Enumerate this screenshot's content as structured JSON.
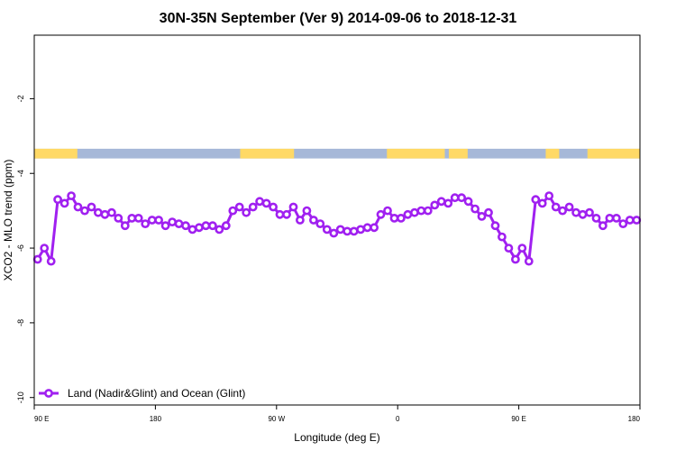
{
  "chart_data": {
    "type": "line",
    "title": "30N-35N September (Ver 9)   2014-09-06 to 2018-12-31",
    "xlabel": "Longitude (deg E)",
    "ylabel": "XCO2 - MLO trend (ppm)",
    "x_ticks": [
      {
        "value": 0,
        "label": "90 E"
      },
      {
        "value": 90,
        "label": "180"
      },
      {
        "value": 180,
        "label": "90 W"
      },
      {
        "value": 270,
        "label": "0"
      },
      {
        "value": 360,
        "label": "90 E"
      },
      {
        "value": 450,
        "label": "180"
      }
    ],
    "y_ticks": [
      {
        "value": -2,
        "label": "-2"
      },
      {
        "value": -4,
        "label": "-4"
      },
      {
        "value": -6,
        "label": "-6"
      },
      {
        "value": -8,
        "label": "-8"
      },
      {
        "value": -10,
        "label": "-10"
      }
    ],
    "xlim": [
      0,
      450
    ],
    "ylim": [
      -10.2,
      -0.3
    ],
    "grid": false,
    "legend_position": "bottom-left",
    "colors": {
      "series": "#a020f0",
      "land": "#ffd966",
      "ocean": "#a6b8d8"
    },
    "land_ocean_band": {
      "y_range": [
        -3.34,
        -3.6
      ],
      "land_segments": [
        [
          0,
          32
        ],
        [
          153,
          193
        ],
        [
          262,
          305
        ],
        [
          308,
          322
        ],
        [
          380,
          390
        ],
        [
          411,
          450
        ]
      ]
    },
    "series": [
      {
        "name": "Land (Nadir&Glint) and Ocean (Glint)",
        "x": [
          2.5,
          7.5,
          12.5,
          17.5,
          22.5,
          27.5,
          32.5,
          37.5,
          42.5,
          47.5,
          52.5,
          57.5,
          62.5,
          67.5,
          72.5,
          77.5,
          82.5,
          87.5,
          92.5,
          97.5,
          102.5,
          107.5,
          112.5,
          117.5,
          122.5,
          127.5,
          132.5,
          137.5,
          142.5,
          147.5,
          152.5,
          157.5,
          162.5,
          167.5,
          172.5,
          177.5,
          182.5,
          187.5,
          192.5,
          197.5,
          202.5,
          207.5,
          212.5,
          217.5,
          222.5,
          227.5,
          232.5,
          237.5,
          242.5,
          247.5,
          252.5,
          257.5,
          262.5,
          267.5,
          272.5,
          277.5,
          282.5,
          287.5,
          292.5,
          297.5,
          302.5,
          307.5,
          312.5,
          317.5,
          322.5,
          327.5,
          332.5,
          337.5,
          342.5,
          347.5,
          352.5,
          357.5,
          362.5,
          367.5,
          372.5,
          377.5,
          382.5,
          387.5,
          392.5,
          397.5,
          402.5,
          407.5,
          412.5,
          417.5,
          422.5,
          427.5,
          432.5,
          437.5,
          442.5,
          447.5
        ],
        "values": [
          -6.3,
          -6.0,
          -6.35,
          -4.7,
          -4.8,
          -4.6,
          -4.9,
          -5.0,
          -4.9,
          -5.05,
          -5.1,
          -5.05,
          -5.2,
          -5.4,
          -5.2,
          -5.2,
          -5.35,
          -5.25,
          -5.25,
          -5.4,
          -5.3,
          -5.35,
          -5.4,
          -5.5,
          -5.45,
          -5.4,
          -5.4,
          -5.5,
          -5.4,
          -5.0,
          -4.9,
          -5.05,
          -4.9,
          -4.75,
          -4.8,
          -4.9,
          -5.1,
          -5.1,
          -4.9,
          -5.25,
          -5.0,
          -5.25,
          -5.35,
          -5.5,
          -5.6,
          -5.5,
          -5.55,
          -5.55,
          -5.5,
          -5.45,
          -5.45,
          -5.1,
          -5.0,
          -5.2,
          -5.2,
          -5.1,
          -5.05,
          -5.0,
          -5.0,
          -4.85,
          -4.75,
          -4.8,
          -4.65,
          -4.65,
          -4.75,
          -4.95,
          -5.15,
          -5.05,
          -5.4,
          -5.7,
          -6.0,
          -6.3,
          -6.0,
          -6.35,
          -4.7,
          -4.8,
          -4.6,
          -4.9,
          -5.0,
          -4.9,
          -5.05,
          -5.1,
          -5.05,
          -5.2,
          -5.4,
          -5.2,
          -5.2,
          -5.35,
          -5.25,
          -5.25
        ]
      }
    ]
  }
}
